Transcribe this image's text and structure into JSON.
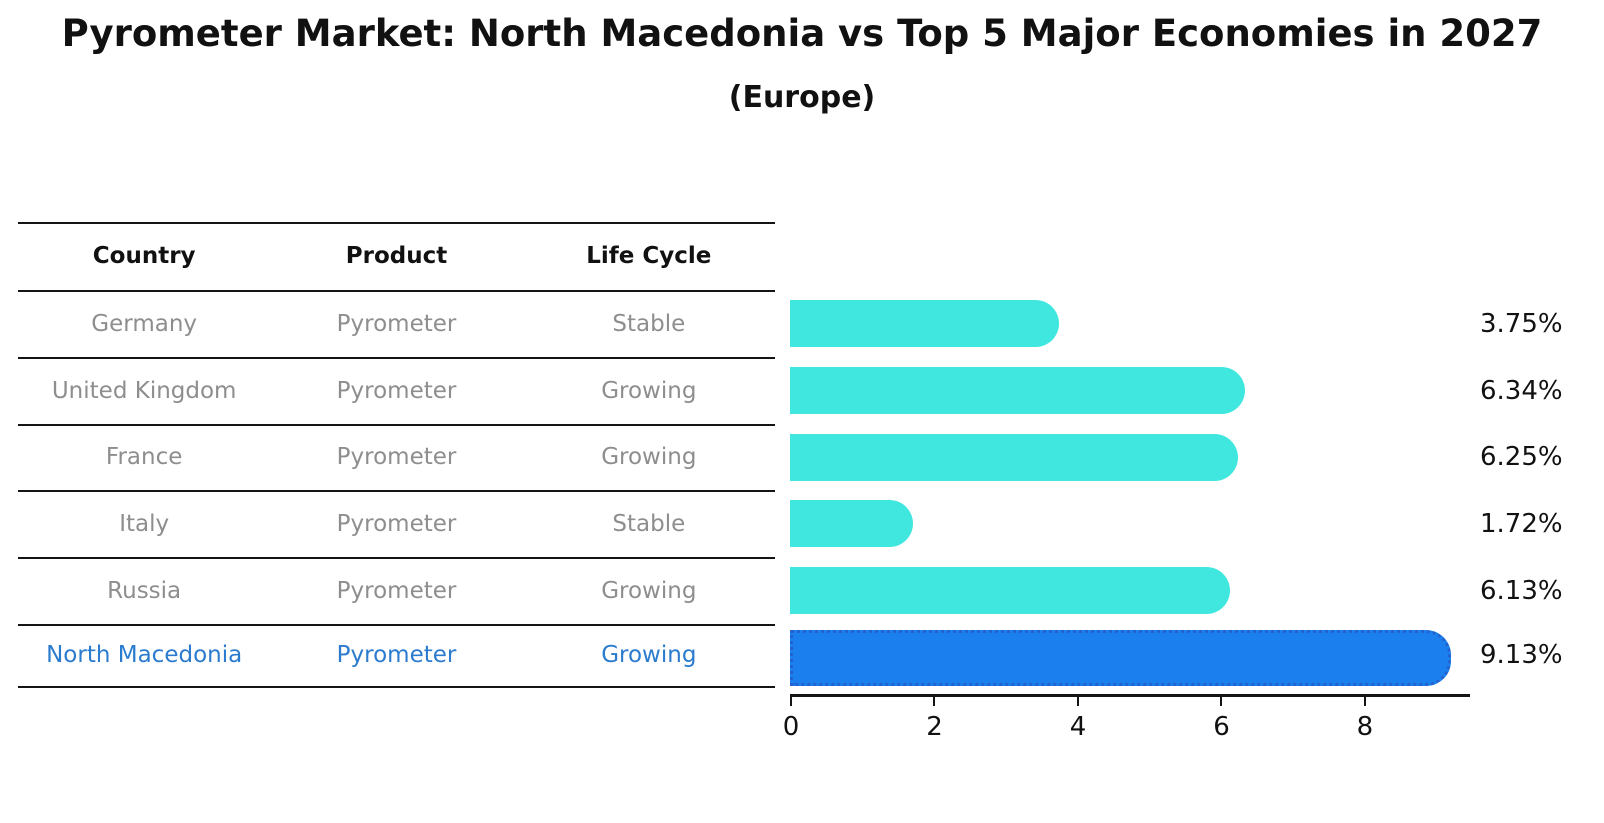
{
  "title": "Pyrometer Market: North Macedonia vs Top 5 Major Economies in 2027",
  "subtitle": "(Europe)",
  "table": {
    "headers": [
      "Country",
      "Product",
      "Life Cycle"
    ],
    "rows": [
      {
        "country": "Germany",
        "product": "Pyrometer",
        "life_cycle": "Stable",
        "highlight": false
      },
      {
        "country": "United Kingdom",
        "product": "Pyrometer",
        "life_cycle": "Growing",
        "highlight": false
      },
      {
        "country": "France",
        "product": "Pyrometer",
        "life_cycle": "Growing",
        "highlight": false
      },
      {
        "country": "Italy",
        "product": "Pyrometer",
        "life_cycle": "Stable",
        "highlight": false
      },
      {
        "country": "Russia",
        "product": "Pyrometer",
        "life_cycle": "Growing",
        "highlight": true
      },
      {
        "country": "North Macedonia",
        "product": "Pyrometer",
        "life_cycle": "Growing",
        "highlight": true
      }
    ]
  },
  "chart_data": {
    "type": "bar",
    "orientation": "horizontal",
    "title": "Pyrometer Market: North Macedonia vs Top 5 Major Economies in 2027",
    "subtitle": "(Europe)",
    "categories": [
      "Germany",
      "United Kingdom",
      "France",
      "Italy",
      "Russia",
      "North Macedonia"
    ],
    "values": [
      3.75,
      6.34,
      6.25,
      1.72,
      6.13,
      9.13
    ],
    "value_labels": [
      "3.75%",
      "6.34%",
      "6.25%",
      "1.72%",
      "6.13%",
      "9.13%"
    ],
    "x_ticks": [
      "0",
      "2",
      "4",
      "6",
      "8"
    ],
    "xlim": [
      0,
      9.45
    ],
    "highlight_index": 5,
    "grid": false,
    "legend": false,
    "xlabel": "",
    "ylabel": ""
  },
  "colors": {
    "bar": "#40e7de",
    "highlight_bar": "#1b7fee",
    "highlight_border": "#2263cf",
    "highlight_text": "#2b7bce",
    "muted_text": "#8e8e8e",
    "dark_text": "#111111"
  }
}
